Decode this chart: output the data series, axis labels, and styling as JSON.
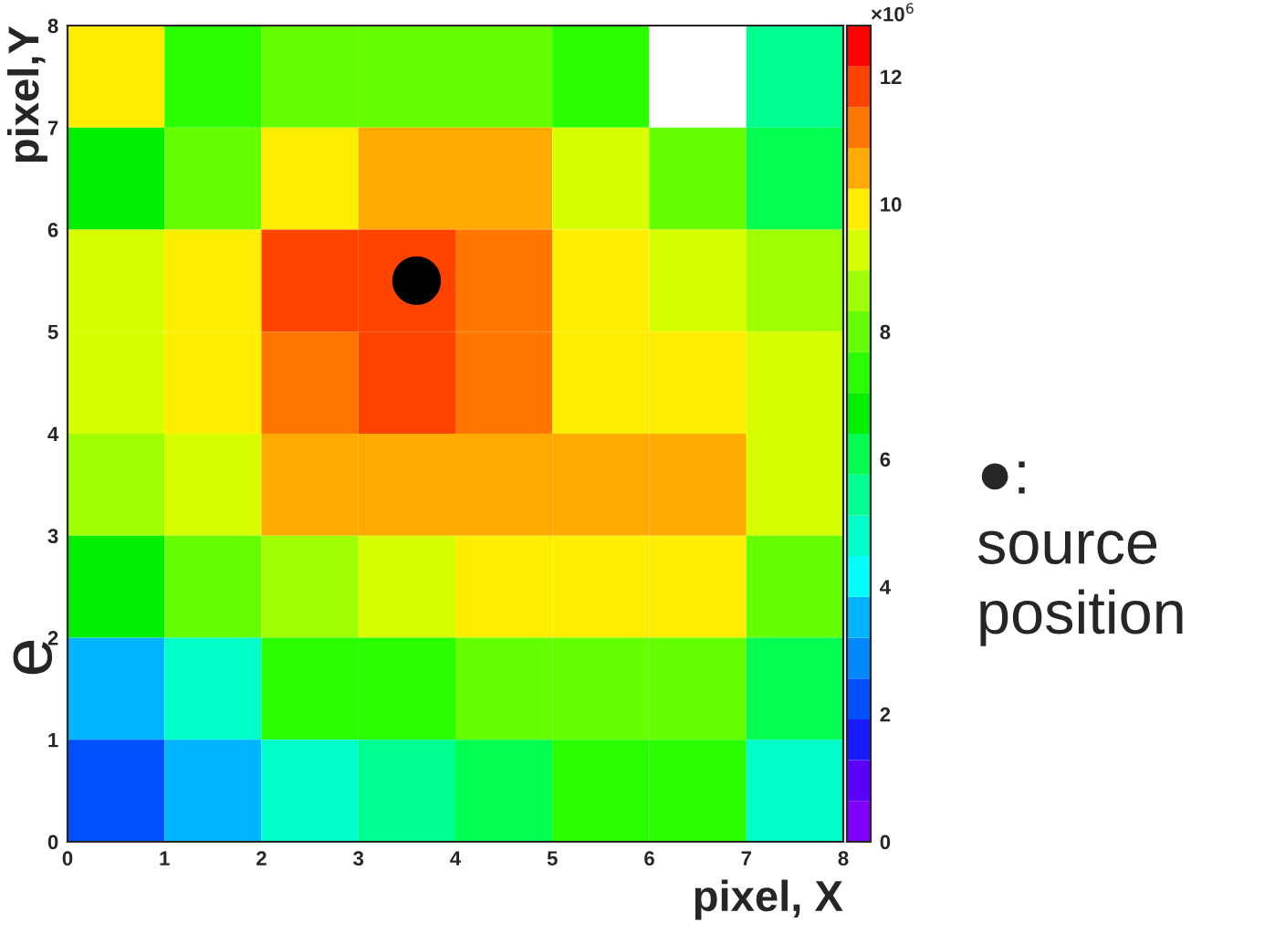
{
  "chart_data": {
    "type": "heatmap",
    "xlabel": "pixel, X",
    "ylabel": "pixel,Y",
    "clabel": "×10$^{6}$",
    "xlim": [
      0,
      8
    ],
    "xticks": [
      0,
      1,
      2,
      3,
      4,
      5,
      6,
      7,
      8
    ],
    "ylim": [
      0,
      8
    ],
    "yticks": [
      0,
      1,
      2,
      3,
      4,
      5,
      6,
      7,
      8
    ],
    "clim": [
      0,
      12.8
    ],
    "cticks": [
      0,
      2,
      4,
      6,
      8,
      10,
      12
    ],
    "cells": [
      [
        9.8,
        7.2,
        8.3,
        8.3,
        8.3,
        7.2,
        null,
        5.2
      ],
      [
        7.0,
        8.2,
        9.9,
        10.6,
        10.6,
        9.5,
        8.3,
        6.2
      ],
      [
        9.5,
        10.1,
        11.8,
        11.8,
        11.2,
        9.9,
        9.4,
        8.5
      ],
      [
        9.5,
        10.1,
        11.2,
        11.8,
        11.2,
        9.9,
        9.9,
        9.3
      ],
      [
        8.8,
        9.4,
        10.6,
        10.6,
        10.6,
        10.6,
        10.6,
        9.4
      ],
      [
        6.4,
        8.2,
        8.8,
        9.4,
        9.9,
        9.9,
        9.9,
        8.2
      ],
      [
        3.2,
        5.0,
        7.2,
        7.3,
        8.2,
        8.2,
        8.2,
        6.1
      ],
      [
        2.2,
        3.6,
        4.8,
        5.6,
        6.3,
        7.2,
        7.2,
        5.0
      ]
    ],
    "series": [
      {
        "type": "scatter",
        "x": [
          3.6
        ],
        "values": [
          5.5
        ],
        "color": "#000000"
      }
    ],
    "annotations": [
      "●:\nsource\nposition",
      "e"
    ]
  }
}
